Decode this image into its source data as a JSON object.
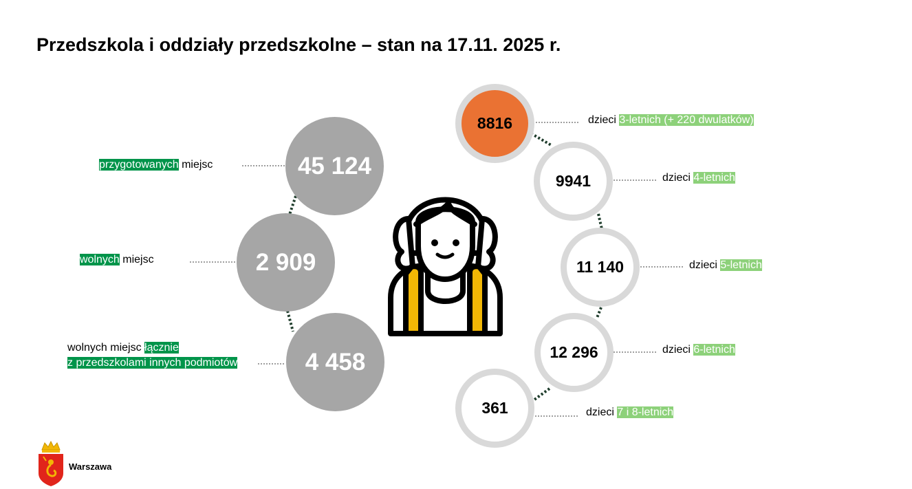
{
  "title": "Przedszkola i oddziały przedszkolne – stan na 17.11. 2025 r.",
  "places": [
    {
      "value": "45 124",
      "label_highlight": "przygotowanych",
      "label_rest": " miejsc"
    },
    {
      "value": "2 909",
      "label_highlight": "wolnych",
      "label_rest": " miejsc"
    },
    {
      "value": "4 458",
      "label_plain": "wolnych miejsc ",
      "label_highlight_1": "łącznie",
      "label_highlight_2": "z przedszkolami innych podmiotów"
    }
  ],
  "children": [
    {
      "value": "8816",
      "label_prefix": "dzieci ",
      "label_highlight": "3-letnich  (+ 220 dwulatków)",
      "highlight_color": "#ea7233"
    },
    {
      "value": "9941",
      "label_prefix": "dzieci ",
      "label_highlight": "4-letnich"
    },
    {
      "value": "11 140",
      "label_prefix": "dzieci ",
      "label_highlight": "5-letnich"
    },
    {
      "value": "12 296",
      "label_prefix": "dzieci ",
      "label_highlight": "6-letnich"
    },
    {
      "value": "361",
      "label_prefix": "dzieci ",
      "label_highlight": "7 i 8-letnich"
    }
  ],
  "logo": {
    "text": "Warszawa",
    "icon": "warsaw-crest-icon"
  },
  "illustration": {
    "icon": "child-with-backpack-icon"
  },
  "colors": {
    "gray_circle": "#a6a6a6",
    "ring": "#d9d9d9",
    "accent_orange": "#ea7233",
    "highlight_dark_green": "#00944a",
    "highlight_light_green": "#8dd17a",
    "backpack_yellow": "#f2b705"
  }
}
